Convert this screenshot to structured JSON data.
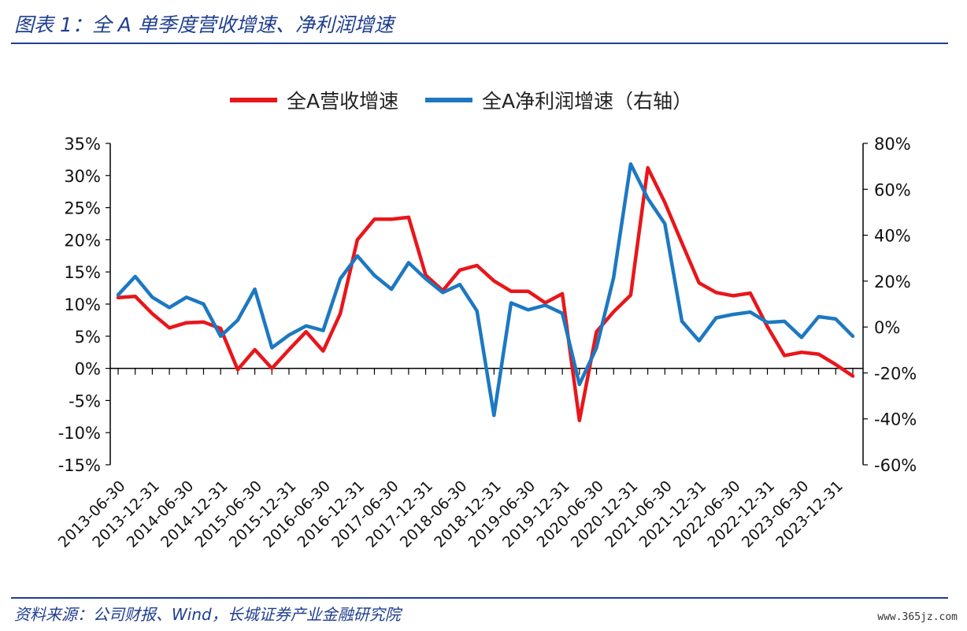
{
  "header": {
    "title": "图表 1：全 A 单季度营收增速、净利润增速"
  },
  "footer": {
    "source": "资料来源：公司财报、Wind，长城证券产业金融研究院",
    "watermark": "www.365jz.com"
  },
  "chart_data": {
    "type": "line",
    "legend_position": "top-center",
    "grid": false,
    "x": [
      "2013-06-30",
      "2013-09-30",
      "2013-12-31",
      "2014-03-31",
      "2014-06-30",
      "2014-09-30",
      "2014-12-31",
      "2015-03-31",
      "2015-06-30",
      "2015-09-30",
      "2015-12-31",
      "2016-03-31",
      "2016-06-30",
      "2016-09-30",
      "2016-12-31",
      "2017-03-31",
      "2017-06-30",
      "2017-09-30",
      "2017-12-31",
      "2018-03-31",
      "2018-06-30",
      "2018-09-30",
      "2018-12-31",
      "2019-03-31",
      "2019-06-30",
      "2019-09-30",
      "2019-12-31",
      "2020-03-31",
      "2020-06-30",
      "2020-09-30",
      "2020-12-31",
      "2021-03-31",
      "2021-06-30",
      "2021-09-30",
      "2021-12-31",
      "2022-03-31",
      "2022-06-30",
      "2022-09-30",
      "2022-12-31",
      "2023-03-31",
      "2023-06-30",
      "2023-09-30",
      "2023-12-31",
      "2024-03-31"
    ],
    "x_tick_labels": [
      "2013-06-30",
      "2013-12-31",
      "2014-06-30",
      "2014-12-31",
      "2015-06-30",
      "2015-12-31",
      "2016-06-30",
      "2016-12-31",
      "2017-06-30",
      "2017-12-31",
      "2018-06-30",
      "2018-12-31",
      "2019-06-30",
      "2019-12-31",
      "2020-06-30",
      "2020-12-31",
      "2021-06-30",
      "2021-12-31",
      "2022-06-30",
      "2022-12-31",
      "2023-06-30",
      "2023-12-31"
    ],
    "left_axis": {
      "ylim": [
        -15,
        35
      ],
      "ticks": [
        -15,
        -10,
        -5,
        0,
        5,
        10,
        15,
        20,
        25,
        30,
        35
      ],
      "suffix": "%"
    },
    "right_axis": {
      "ylim": [
        -60,
        80
      ],
      "ticks": [
        -60,
        -40,
        -20,
        0,
        20,
        40,
        60,
        80
      ],
      "suffix": "%"
    },
    "series": [
      {
        "name": "全A营收增速",
        "axis": "left",
        "color": "#e8161b",
        "values": [
          11.0,
          11.2,
          8.5,
          6.3,
          7.1,
          7.2,
          6.2,
          -0.2,
          2.9,
          0.0,
          2.9,
          5.7,
          2.7,
          8.5,
          20.0,
          23.2,
          23.2,
          23.5,
          14.5,
          12.1,
          15.3,
          16.0,
          13.6,
          12.0,
          12.0,
          10.2,
          11.6,
          -8.1,
          5.7,
          8.8,
          11.4,
          31.2,
          25.8,
          19.5,
          13.3,
          11.8,
          11.3,
          11.7,
          6.5,
          2.0,
          2.5,
          2.2,
          0.6,
          -1.2
        ]
      },
      {
        "name": "全A净利润增速（右轴）",
        "axis": "right",
        "color": "#1d78c1",
        "values": [
          14,
          22,
          13,
          8.5,
          13,
          10,
          -4,
          3,
          16.5,
          -9,
          -3.5,
          0.5,
          -1.5,
          21,
          31,
          22.5,
          16.5,
          28,
          21,
          15,
          18.5,
          7,
          -38.5,
          10.5,
          7.5,
          9.5,
          6,
          -25,
          -9,
          21.5,
          71,
          56,
          45,
          2.5,
          -6,
          4,
          5.5,
          6.5,
          2,
          2.5,
          -4.5,
          4.5,
          3.5,
          -4
        ]
      }
    ]
  }
}
